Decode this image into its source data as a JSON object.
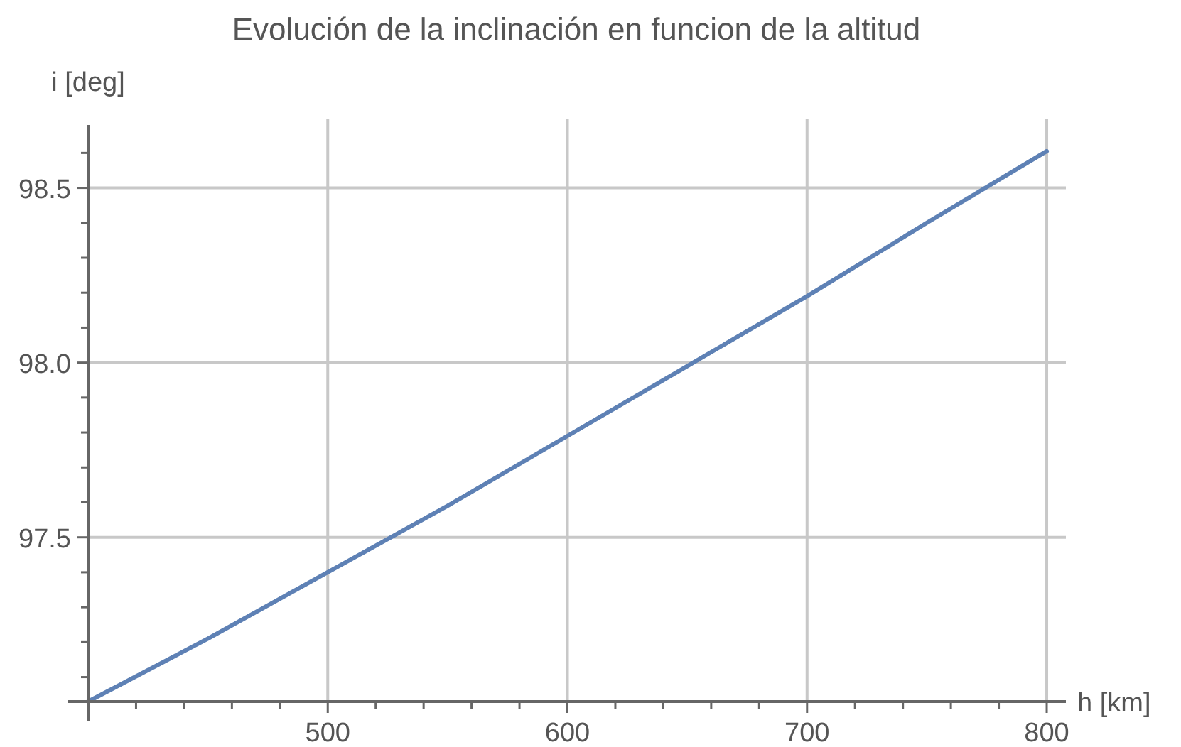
{
  "chart_data": {
    "type": "line",
    "title": "Evolución de la inclinación en funcion de la altitud",
    "xlabel": "h [km]",
    "ylabel": "i [deg]",
    "x": [
      400,
      450,
      500,
      550,
      600,
      650,
      700,
      750,
      800
    ],
    "series": [
      {
        "color": "#5e81b5",
        "values": [
          97.03,
          97.21,
          97.4,
          97.59,
          97.79,
          97.99,
          98.19,
          98.4,
          98.605
        ]
      }
    ],
    "xlim": [
      400,
      808
    ],
    "ylim": [
      97.03,
      98.68
    ],
    "xticks": [
      {
        "value": 420,
        "label": null
      },
      {
        "value": 440,
        "label": null
      },
      {
        "value": 460,
        "label": null
      },
      {
        "value": 480,
        "label": null
      },
      500,
      {
        "value": 520,
        "label": null
      },
      {
        "value": 540,
        "label": null
      },
      {
        "value": 560,
        "label": null
      },
      {
        "value": 580,
        "label": null
      },
      600,
      {
        "value": 620,
        "label": null
      },
      {
        "value": 640,
        "label": null
      },
      {
        "value": 660,
        "label": null
      },
      {
        "value": 680,
        "label": null
      },
      700,
      {
        "value": 720,
        "label": null
      },
      {
        "value": 740,
        "label": null
      },
      {
        "value": 760,
        "label": null
      },
      {
        "value": 780,
        "label": null
      },
      800
    ],
    "yticks": [
      {
        "value": 97.1,
        "label": null
      },
      {
        "value": 97.2,
        "label": null
      },
      {
        "value": 97.3,
        "label": null
      },
      {
        "value": 97.4,
        "label": null
      },
      97.5,
      {
        "value": 97.6,
        "label": null
      },
      {
        "value": 97.7,
        "label": null
      },
      {
        "value": 97.8,
        "label": null
      },
      {
        "value": 97.9,
        "label": null
      },
      {
        "value": 98.0,
        "label": "98.0"
      },
      {
        "value": 98.1,
        "label": null
      },
      {
        "value": 98.2,
        "label": null
      },
      {
        "value": 98.3,
        "label": null
      },
      {
        "value": 98.4,
        "label": null
      },
      98.5,
      {
        "value": 98.6,
        "label": null
      }
    ],
    "grid": true,
    "marker": "none",
    "line_style": "solid"
  }
}
